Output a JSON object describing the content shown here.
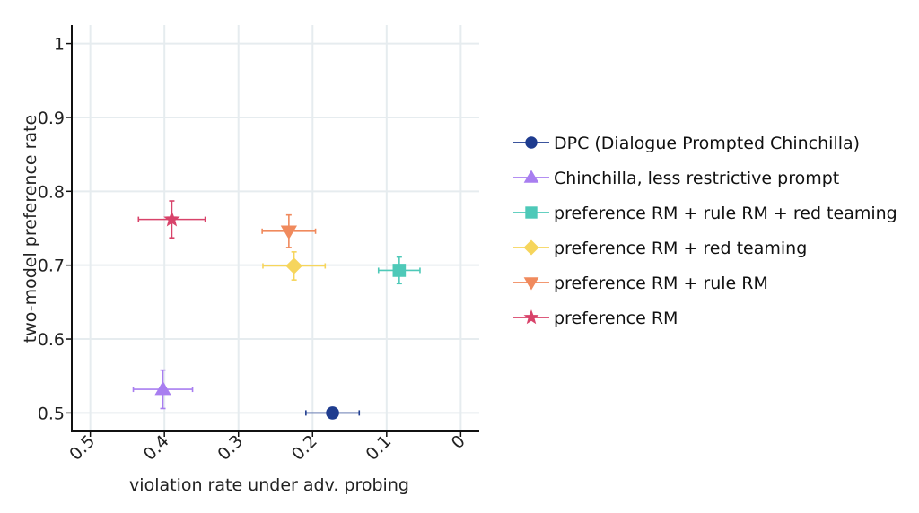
{
  "chart_data": {
    "type": "scatter",
    "title": "",
    "xlabel": "violation rate under adv. probing",
    "ylabel": "two-model preference rate",
    "xlim": [
      0.525,
      -0.025
    ],
    "ylim": [
      0.475,
      1.025
    ],
    "x_reversed": true,
    "x_ticks": [
      0.5,
      0.4,
      0.3,
      0.2,
      0.1,
      0
    ],
    "x_tick_labels": [
      "0.5",
      "0.4",
      "0.3",
      "0.2",
      "0.1",
      "0"
    ],
    "y_ticks": [
      0.5,
      0.6,
      0.7,
      0.8,
      0.9,
      1.0
    ],
    "y_tick_labels": [
      "0.5",
      "0.6",
      "0.7",
      "0.8",
      "0.9",
      "1"
    ],
    "grid": true,
    "legend_position": "right",
    "series": [
      {
        "name": "DPC (Dialogue Prompted Chinchilla)",
        "marker": "circle",
        "color": "#1f3c8f",
        "x": 0.173,
        "y": 0.5,
        "xerr": [
          0.036,
          0.036
        ],
        "yerr": [
          0,
          0
        ]
      },
      {
        "name": "Chinchilla, less restrictive prompt",
        "marker": "triangle-up",
        "color": "#a87ef0",
        "x": 0.402,
        "y": 0.532,
        "xerr": [
          0.04,
          0.04
        ],
        "yerr": [
          0.026,
          0.026
        ]
      },
      {
        "name": "preference RM + rule RM + red teaming",
        "marker": "square",
        "color": "#4ec9b8",
        "x": 0.083,
        "y": 0.693,
        "xerr": [
          0.028,
          0.028
        ],
        "yerr": [
          0.018,
          0.018
        ]
      },
      {
        "name": "preference RM + red teaming",
        "marker": "diamond",
        "color": "#f6d55c",
        "x": 0.225,
        "y": 0.699,
        "xerr": [
          0.042,
          0.042
        ],
        "yerr": [
          0.019,
          0.019
        ]
      },
      {
        "name": "preference RM + rule RM",
        "marker": "triangle-down",
        "color": "#f08a5d",
        "x": 0.232,
        "y": 0.746,
        "xerr": [
          0.036,
          0.036
        ],
        "yerr": [
          0.022,
          0.022
        ]
      },
      {
        "name": "preference RM",
        "marker": "star",
        "color": "#d8436a",
        "x": 0.39,
        "y": 0.762,
        "xerr": [
          0.045,
          0.045
        ],
        "yerr": [
          0.025,
          0.025
        ]
      }
    ]
  }
}
